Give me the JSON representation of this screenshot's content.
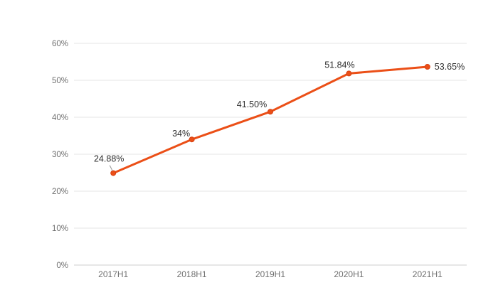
{
  "chart_data": {
    "type": "line",
    "title": "",
    "xlabel": "",
    "ylabel": "",
    "categories": [
      "2017H1",
      "2018H1",
      "2019H1",
      "2020H1",
      "2021H1"
    ],
    "values": [
      24.88,
      34,
      41.5,
      51.84,
      53.65
    ],
    "point_labels": [
      "24.88%",
      "34%",
      "41.50%",
      "51.84%",
      "53.65%"
    ],
    "ylim": [
      0,
      60
    ],
    "ytick_values": [
      0,
      10,
      20,
      30,
      40,
      50,
      60
    ],
    "ytick_labels": [
      "0%",
      "10%",
      "20%",
      "30%",
      "40%",
      "50%",
      "60%"
    ],
    "grid": true,
    "legend": "none",
    "colors": {
      "line": "#eb4f17",
      "marker_fill": "#eb4f17",
      "marker_stroke": "#d64012",
      "gridline": "#e5e5e5",
      "axis_line": "#cccccc",
      "tick_label": "#707070",
      "data_label": "#2f2f2f",
      "leader_line": "#999999",
      "background": "#ffffff"
    }
  }
}
